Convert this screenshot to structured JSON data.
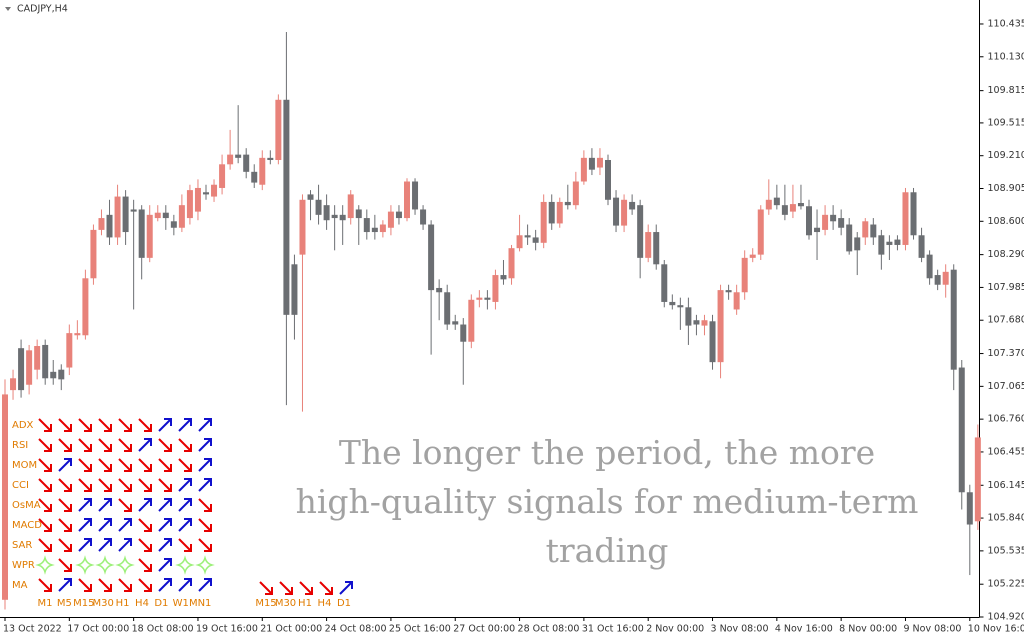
{
  "chart_data": {
    "type": "candlestick",
    "title": "CADJPY,H4",
    "up_color": "#e8827a",
    "down_color": "#6b6e72",
    "ylim": [
      104.92,
      110.658
    ],
    "yticks": [
      110.435,
      {
        "value": 110.13,
        "label": "110.130"
      },
      109.815,
      109.515,
      {
        "value": 109.21,
        "label": "109.210"
      },
      108.905,
      {
        "value": 108.6,
        "label": "108.600"
      },
      {
        "value": 108.29,
        "label": "108.290"
      },
      107.985,
      {
        "value": 107.68,
        "label": "107.680"
      },
      {
        "value": 107.37,
        "label": "107.370"
      },
      107.065,
      {
        "value": 106.76,
        "label": "106.760"
      },
      106.455,
      106.145,
      {
        "value": 105.84,
        "label": "105.840"
      },
      105.535,
      105.225,
      {
        "value": 104.92,
        "label": "104.920"
      }
    ],
    "x": [
      "13 Oct 2022",
      null,
      null,
      null,
      null,
      null,
      null,
      null,
      "17 Oct 00:00",
      null,
      null,
      null,
      null,
      null,
      null,
      null,
      "18 Oct 08:00",
      null,
      null,
      null,
      null,
      null,
      null,
      null,
      "19 Oct 16:00",
      null,
      null,
      null,
      null,
      null,
      null,
      null,
      "21 Oct 00:00",
      null,
      null,
      null,
      null,
      null,
      null,
      null,
      "24 Oct 08:00",
      null,
      null,
      null,
      null,
      null,
      null,
      null,
      "25 Oct 16:00",
      null,
      null,
      null,
      null,
      null,
      null,
      null,
      "27 Oct 00:00",
      null,
      null,
      null,
      null,
      null,
      null,
      null,
      "28 Oct 08:00",
      null,
      null,
      null,
      null,
      null,
      null,
      null,
      "31 Oct 16:00",
      null,
      null,
      null,
      null,
      null,
      null,
      null,
      "2 Nov 00:00",
      null,
      null,
      null,
      null,
      null,
      null,
      null,
      "3 Nov 08:00",
      null,
      null,
      null,
      null,
      null,
      null,
      null,
      "4 Nov 16:00",
      null,
      null,
      null,
      null,
      null,
      null,
      null,
      "8 Nov 00:00",
      null,
      null,
      null,
      null,
      null,
      null,
      null,
      "9 Nov 08:00",
      null,
      null,
      null,
      null,
      null,
      null,
      null,
      "10 Nov 16:00",
      null
    ],
    "candles": [
      [
        105.08,
        107.13,
        104.99,
        106.99
      ],
      [
        107.03,
        107.22,
        106.94,
        107.14
      ],
      [
        107.42,
        107.5,
        106.96,
        107.03
      ],
      [
        107.08,
        107.45,
        106.99,
        107.4
      ],
      [
        107.22,
        107.5,
        107.13,
        107.44
      ],
      [
        107.45,
        107.5,
        107.08,
        107.14
      ],
      [
        107.2,
        107.31,
        107.08,
        107.14
      ],
      [
        107.22,
        107.27,
        107.03,
        107.13
      ],
      [
        107.24,
        107.64,
        107.17,
        107.56
      ],
      [
        107.54,
        107.68,
        107.5,
        107.56
      ],
      [
        107.54,
        108.15,
        107.5,
        108.07
      ],
      [
        108.07,
        108.57,
        108.01,
        108.52
      ],
      [
        108.52,
        108.71,
        108.47,
        108.63
      ],
      [
        108.66,
        108.8,
        108.38,
        108.45
      ],
      [
        108.45,
        108.94,
        108.38,
        108.83
      ],
      [
        108.83,
        108.89,
        108.38,
        108.5
      ],
      [
        108.71,
        108.8,
        107.78,
        108.69
      ],
      [
        108.71,
        108.75,
        108.06,
        108.26
      ],
      [
        108.26,
        108.75,
        108.22,
        108.66
      ],
      [
        108.63,
        108.75,
        108.6,
        108.68
      ],
      [
        108.68,
        108.75,
        108.52,
        108.63
      ],
      [
        108.6,
        108.66,
        108.47,
        108.54
      ],
      [
        108.54,
        108.85,
        108.5,
        108.75
      ],
      [
        108.63,
        108.94,
        108.57,
        108.89
      ],
      [
        108.69,
        108.99,
        108.61,
        108.91
      ],
      [
        108.87,
        108.94,
        108.8,
        108.85
      ],
      [
        108.83,
        108.99,
        108.78,
        108.94
      ],
      [
        108.91,
        109.22,
        108.85,
        109.13
      ],
      [
        109.13,
        109.45,
        109.08,
        109.22
      ],
      [
        109.22,
        109.68,
        109.14,
        109.19
      ],
      [
        109.22,
        109.28,
        109.0,
        109.06
      ],
      [
        109.06,
        109.13,
        108.91,
        108.96
      ],
      [
        108.94,
        109.26,
        108.89,
        109.19
      ],
      [
        109.19,
        109.26,
        109.13,
        109.17
      ],
      [
        109.17,
        109.78,
        109.13,
        109.73
      ],
      [
        109.73,
        110.36,
        106.89,
        107.73
      ],
      [
        108.2,
        108.29,
        107.5,
        107.73
      ],
      [
        108.29,
        108.85,
        106.83,
        108.8
      ],
      [
        108.85,
        108.89,
        108.61,
        108.8
      ],
      [
        108.8,
        108.94,
        108.57,
        108.66
      ],
      [
        108.75,
        108.85,
        108.52,
        108.61
      ],
      [
        108.66,
        108.75,
        108.33,
        108.63
      ],
      [
        108.66,
        108.75,
        108.38,
        108.61
      ],
      [
        108.63,
        108.89,
        108.57,
        108.85
      ],
      [
        108.71,
        108.75,
        108.38,
        108.63
      ],
      [
        108.63,
        108.71,
        108.43,
        108.5
      ],
      [
        108.54,
        108.66,
        108.43,
        108.5
      ],
      [
        108.5,
        108.61,
        108.45,
        108.57
      ],
      [
        108.54,
        108.75,
        108.47,
        108.69
      ],
      [
        108.69,
        108.75,
        108.57,
        108.63
      ],
      [
        108.63,
        109.0,
        108.6,
        108.97
      ],
      [
        108.97,
        109.0,
        108.66,
        108.71
      ],
      [
        108.71,
        108.75,
        108.52,
        108.57
      ],
      [
        108.57,
        108.61,
        107.36,
        107.96
      ],
      [
        107.98,
        108.06,
        107.68,
        107.94
      ],
      [
        107.94,
        108.01,
        107.59,
        107.64
      ],
      [
        107.67,
        107.73,
        107.59,
        107.64
      ],
      [
        107.64,
        107.7,
        107.08,
        107.48
      ],
      [
        107.48,
        107.92,
        107.42,
        107.87
      ],
      [
        107.87,
        107.96,
        107.8,
        107.89
      ],
      [
        107.89,
        107.96,
        107.78,
        107.87
      ],
      [
        107.85,
        108.15,
        107.78,
        108.1
      ],
      [
        108.1,
        108.24,
        108.01,
        108.06
      ],
      [
        108.07,
        108.38,
        108.01,
        108.35
      ],
      [
        108.35,
        108.66,
        108.32,
        108.47
      ],
      [
        108.47,
        108.57,
        108.38,
        108.45
      ],
      [
        108.45,
        108.52,
        108.33,
        108.4
      ],
      [
        108.4,
        108.85,
        108.35,
        108.78
      ],
      [
        108.78,
        108.85,
        108.52,
        108.58
      ],
      [
        108.58,
        108.82,
        108.54,
        108.78
      ],
      [
        108.78,
        108.94,
        108.71,
        108.75
      ],
      [
        108.75,
        109.06,
        108.71,
        108.97
      ],
      [
        108.97,
        109.26,
        108.94,
        109.19
      ],
      [
        109.19,
        109.28,
        109.03,
        109.08
      ],
      [
        109.1,
        109.28,
        109.03,
        109.19
      ],
      [
        109.17,
        109.22,
        108.75,
        108.8
      ],
      [
        108.82,
        108.89,
        108.5,
        108.56
      ],
      [
        108.56,
        108.85,
        108.5,
        108.8
      ],
      [
        108.78,
        108.85,
        108.66,
        108.71
      ],
      [
        108.75,
        108.8,
        108.07,
        108.26
      ],
      [
        108.26,
        108.57,
        108.22,
        108.5
      ],
      [
        108.5,
        108.57,
        108.15,
        108.2
      ],
      [
        108.2,
        108.24,
        107.8,
        107.85
      ],
      [
        107.85,
        107.92,
        107.78,
        107.82
      ],
      [
        107.82,
        107.89,
        107.59,
        107.8
      ],
      [
        107.8,
        107.89,
        107.45,
        107.63
      ],
      [
        107.68,
        107.73,
        107.54,
        107.64
      ],
      [
        107.63,
        107.73,
        107.54,
        107.68
      ],
      [
        107.67,
        107.73,
        107.22,
        107.29
      ],
      [
        107.29,
        108.01,
        107.14,
        107.96
      ],
      [
        107.96,
        108.01,
        107.87,
        107.94
      ],
      [
        107.78,
        108.01,
        107.73,
        107.94
      ],
      [
        107.94,
        108.33,
        107.87,
        108.26
      ],
      [
        108.26,
        108.35,
        108.22,
        108.29
      ],
      [
        108.29,
        108.75,
        108.24,
        108.71
      ],
      [
        108.71,
        108.99,
        108.66,
        108.8
      ],
      [
        108.82,
        108.94,
        108.71,
        108.75
      ],
      [
        108.75,
        108.94,
        108.61,
        108.66
      ],
      [
        108.69,
        108.94,
        108.63,
        108.76
      ],
      [
        108.77,
        108.94,
        108.71,
        108.74
      ],
      [
        108.74,
        108.8,
        108.43,
        108.47
      ],
      [
        108.54,
        108.71,
        108.24,
        108.5
      ],
      [
        108.52,
        108.75,
        108.47,
        108.66
      ],
      [
        108.66,
        108.75,
        108.52,
        108.6
      ],
      [
        108.63,
        108.71,
        108.47,
        108.54
      ],
      [
        108.57,
        108.63,
        108.29,
        108.32
      ],
      [
        108.45,
        108.5,
        108.1,
        108.33
      ],
      [
        108.45,
        108.63,
        108.38,
        108.6
      ],
      [
        108.57,
        108.63,
        108.38,
        108.45
      ],
      [
        108.47,
        108.52,
        108.15,
        108.29
      ],
      [
        108.41,
        108.47,
        108.24,
        108.38
      ],
      [
        108.43,
        108.47,
        108.33,
        108.38
      ],
      [
        108.38,
        108.91,
        108.33,
        108.87
      ],
      [
        108.87,
        108.91,
        108.43,
        108.47
      ],
      [
        108.47,
        108.54,
        108.22,
        108.26
      ],
      [
        108.29,
        108.33,
        108.01,
        108.07
      ],
      [
        108.1,
        108.15,
        107.96,
        108.01
      ],
      [
        108.01,
        108.2,
        107.89,
        108.13
      ],
      [
        108.15,
        108.2,
        107.03,
        107.22
      ],
      [
        107.24,
        107.31,
        105.92,
        106.08
      ],
      [
        106.08,
        106.15,
        105.31,
        105.78
      ],
      [
        105.81,
        106.71,
        105.73,
        106.59
      ]
    ],
    "indicator_panel": {
      "rows": [
        "ADX",
        "RSI",
        "MOM",
        "CCI",
        "OsMA",
        "MACD",
        "SAR",
        "WPR",
        "MA"
      ],
      "columns": [
        "M1",
        "M5",
        "M15",
        "M30",
        "H1",
        "H4",
        "D1",
        "W1",
        "MN1"
      ],
      "signals": [
        [
          "down",
          "down",
          "down",
          "down",
          "down",
          "down",
          "up",
          "up",
          "up"
        ],
        [
          "down",
          "down",
          "down",
          "down",
          "down",
          "up",
          "down",
          "down",
          "up"
        ],
        [
          "down",
          "up",
          "down",
          "down",
          "down",
          "down",
          "down",
          "down",
          "up"
        ],
        [
          "down",
          "down",
          "down",
          "down",
          "down",
          "down",
          "down",
          "up",
          "up"
        ],
        [
          "down",
          "down",
          "up",
          "up",
          "down",
          "up",
          "up",
          "up",
          "down"
        ],
        [
          "down",
          "down",
          "up",
          "up",
          "up",
          "down",
          "up",
          "up",
          "down"
        ],
        [
          "down",
          "down",
          "up",
          "up",
          "up",
          "down",
          "up",
          "down",
          "down"
        ],
        [
          "neutral",
          "down",
          "neutral",
          "neutral",
          "neutral",
          "down",
          "up",
          "neutral",
          "neutral"
        ],
        [
          "down",
          "up",
          "down",
          "down",
          "down",
          "down",
          "up",
          "up",
          "up"
        ]
      ],
      "summary_columns": [
        "M15",
        "M30",
        "H1",
        "H4",
        "D1"
      ],
      "summary_signals": [
        "down",
        "down",
        "down",
        "down",
        "up"
      ],
      "up_color": "#1010cc",
      "down_color": "#e60000",
      "neutral_color": "#9df07a"
    },
    "overlay_text": [
      "The longer the period, the more",
      "high-quality signals for medium-term",
      "trading"
    ]
  }
}
